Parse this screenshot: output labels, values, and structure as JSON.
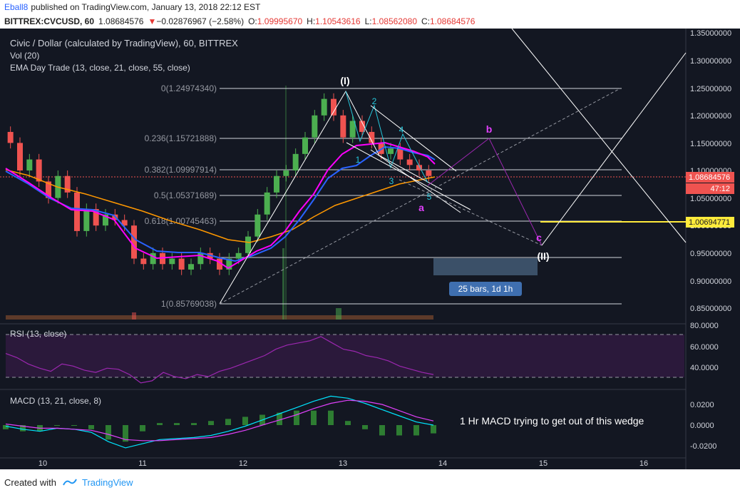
{
  "header": {
    "author": "Eball8",
    "published_text": "published on TradingView.com, January 13, 2018 22:12 EST",
    "symbol": "BITTREX:CVCUSD, 60",
    "last": "1.08684576",
    "change_arrow": "▼",
    "change": "−0.02876967 (−2.58%)",
    "o_label": "O:",
    "o": "1.09995670",
    "h_label": "H:",
    "h": "1.10543616",
    "l_label": "L:",
    "l": "1.08562080",
    "c_label": "C:",
    "c": "1.08684576"
  },
  "legend": {
    "main": "Civic / Dollar (calculated by TradingView), 60, BITTREX",
    "vol": "Vol (20)",
    "ema": "EMA Day Trade (13, close, 21, close, 55, close)",
    "rsi": "RSI (13, close)",
    "macd": "MACD (13, 21, close, 8)"
  },
  "fib_labels": [
    "0(1.24974340)",
    "0.236(1.15721888)",
    "0.382(1.09997914)",
    "0.5(1.05371689)",
    "0.618(1.00745463)",
    "1(0.85769038)"
  ],
  "wave_labels": {
    "i": "(I)",
    "ii": "(II)",
    "w1": "1",
    "w2": "2",
    "w3": "3",
    "w4": "4",
    "w5": "5",
    "a": "a",
    "b": "b",
    "c": "c"
  },
  "measure_label": "25 bars, 1d 1h",
  "annotation": "1 Hr MACD trying to get out of this wedge",
  "price_tags": {
    "last": "1.08684576",
    "timer": "47:12",
    "yellow": "1.00694771"
  },
  "footer": {
    "created_with": "Created with",
    "brand": "TradingView"
  },
  "colors": {
    "background": "#131722",
    "up_candle": "#4caf50",
    "down_candle": "#ef5350",
    "ema13": "#ff00ff",
    "ema21": "#2962ff",
    "ema55": "#ff9800",
    "fib_line": "#d1d4dc",
    "yellow_line": "#ffeb3b",
    "rsi_line": "#9c27b0",
    "macd_line": "#00e5ff",
    "signal_line": "#e040fb"
  },
  "chart_data": [
    {
      "type": "candlestick",
      "title": "Civic / Dollar (calculated by TradingView), 60, BITTREX",
      "x_ticks": [
        "10",
        "11",
        "12",
        "13",
        "14",
        "15",
        "16"
      ],
      "y_ticks": [
        "1.35000000",
        "1.30000000",
        "1.25000000",
        "1.20000000",
        "1.15000000",
        "1.10000000",
        "1.05000000",
        "1.00000000",
        "0.95000000",
        "0.90000000",
        "0.85000000"
      ],
      "ylim": [
        0.835,
        1.36
      ],
      "close_approx": [
        1.15,
        1.1,
        1.12,
        1.08,
        1.05,
        1.09,
        1.06,
        0.99,
        1.03,
        1.0,
        1.02,
        1.01,
        1.0,
        0.94,
        0.93,
        0.95,
        0.93,
        0.94,
        0.92,
        0.93,
        0.95,
        0.94,
        0.92,
        0.94,
        0.95,
        0.98,
        1.02,
        1.06,
        1.09,
        1.1,
        1.13,
        1.16,
        1.2,
        1.23,
        1.2,
        1.16,
        1.19,
        1.17,
        1.15,
        1.13,
        1.14,
        1.12,
        1.11,
        1.1,
        1.09
      ],
      "last_price": 1.08684576,
      "fib_levels": [
        {
          "ratio": "0",
          "price": 1.2497434
        },
        {
          "ratio": "0.236",
          "price": 1.15721888
        },
        {
          "ratio": "0.382",
          "price": 1.09997914
        },
        {
          "ratio": "0.5",
          "price": 1.05371689
        },
        {
          "ratio": "0.618",
          "price": 1.00745463
        },
        {
          "ratio": "1",
          "price": 0.85769038
        }
      ],
      "horizontal_line": 1.00694771
    },
    {
      "type": "line",
      "title": "RSI (13, close)",
      "y_ticks": [
        "80.0000",
        "60.0000",
        "40.0000"
      ],
      "ylim": [
        25,
        80
      ],
      "bands": [
        30,
        70
      ],
      "values": [
        62,
        58,
        52,
        48,
        45,
        52,
        50,
        46,
        44,
        48,
        47,
        42,
        34,
        36,
        44,
        40,
        38,
        42,
        40,
        45,
        48,
        52,
        56,
        60,
        66,
        70,
        72,
        74,
        78,
        72,
        66,
        64,
        60,
        58,
        55,
        50,
        47,
        44,
        42
      ]
    },
    {
      "type": "line",
      "title": "MACD (13, 21, close, 8)",
      "y_ticks": [
        "0.0200",
        "0.0000",
        "-0.0200"
      ],
      "ylim": [
        -0.026,
        0.028
      ],
      "series": [
        {
          "values": [
            -0.001,
            -0.004,
            -0.006,
            -0.003,
            -0.004,
            -0.007,
            -0.016,
            -0.022,
            -0.018,
            -0.014,
            -0.013,
            -0.012,
            -0.01,
            -0.006,
            -0.001,
            0.005,
            0.011,
            0.017,
            0.023,
            0.028,
            0.026,
            0.021,
            0.015,
            0.009,
            0.003,
            0.0
          ]
        },
        {
          "values": [
            0.001,
            -0.001,
            -0.003,
            -0.003,
            -0.004,
            -0.005,
            -0.009,
            -0.014,
            -0.015,
            -0.015,
            -0.014,
            -0.013,
            -0.012,
            -0.009,
            -0.005,
            0.0,
            0.005,
            0.01,
            0.016,
            0.021,
            0.024,
            0.023,
            0.02,
            0.014,
            0.008,
            0.004
          ]
        }
      ]
    }
  ]
}
